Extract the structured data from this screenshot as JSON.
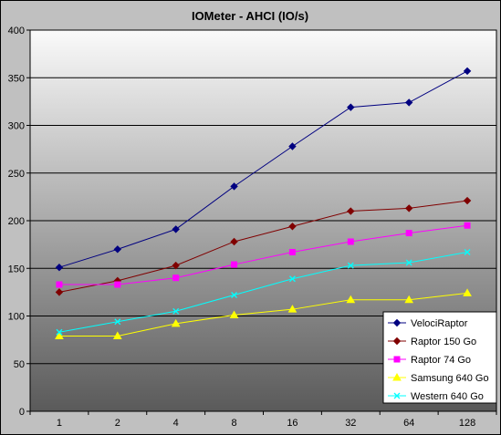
{
  "chart_data": {
    "type": "line",
    "title": "IOMeter - AHCI (IO/s)",
    "xlabel": "",
    "ylabel": "",
    "categories": [
      "1",
      "2",
      "4",
      "8",
      "16",
      "32",
      "64",
      "128"
    ],
    "ylim": [
      0,
      400
    ],
    "yticks": [
      0,
      50,
      100,
      150,
      200,
      250,
      300,
      350,
      400
    ],
    "grid": true,
    "legend_position": "bottom-right",
    "series": [
      {
        "name": "VelociRaptor",
        "color": "#000080",
        "marker": "diamond",
        "values": [
          151,
          170,
          191,
          236,
          278,
          319,
          324,
          357
        ]
      },
      {
        "name": "Raptor 150 Go",
        "color": "#800000",
        "marker": "diamond",
        "values": [
          125,
          137,
          153,
          178,
          194,
          210,
          213,
          221
        ]
      },
      {
        "name": "Raptor 74 Go",
        "color": "#ff00ff",
        "marker": "square",
        "values": [
          133,
          133,
          140,
          154,
          167,
          178,
          187,
          195
        ]
      },
      {
        "name": "Samsung 640 Go",
        "color": "#ffff00",
        "marker": "triangle",
        "values": [
          79,
          79,
          92,
          101,
          107,
          117,
          117,
          124
        ]
      },
      {
        "name": "Western 640 Go",
        "color": "#00ffff",
        "marker": "x",
        "values": [
          83,
          94,
          105,
          122,
          139,
          153,
          156,
          167
        ]
      }
    ]
  }
}
